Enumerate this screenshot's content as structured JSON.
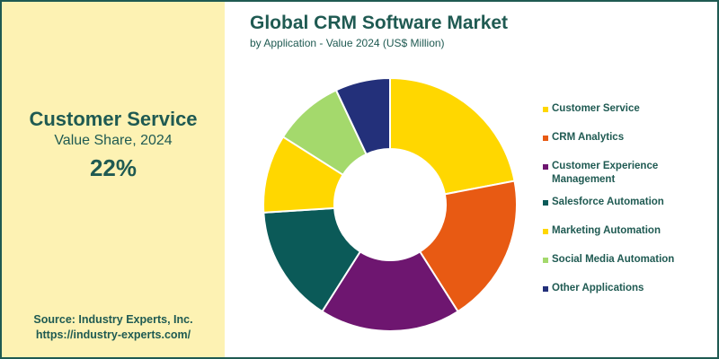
{
  "highlight": {
    "name": "Customer Service",
    "subtitle": "Value Share, 2024",
    "value": "22%"
  },
  "source": {
    "line1": "Source: Industry Experts, Inc.",
    "line2": "https://industry-experts.com/"
  },
  "chart_data": {
    "type": "pie",
    "donut": true,
    "title": "Global CRM Software Market",
    "subtitle": "by Application - Value 2024 (US$ Million)",
    "categories": [
      "Customer Service",
      "CRM Analytics",
      "Customer Experience Management",
      "Salesforce Automation",
      "Marketing Automation",
      "Social Media Automation",
      "Other Applications"
    ],
    "values": [
      22,
      19,
      18,
      15,
      10,
      9,
      7
    ],
    "colors": [
      "#ffd700",
      "#e85a13",
      "#6e1670",
      "#0b5a58",
      "#ffd700",
      "#a4d96c",
      "#23307a"
    ],
    "legend_position": "right"
  }
}
